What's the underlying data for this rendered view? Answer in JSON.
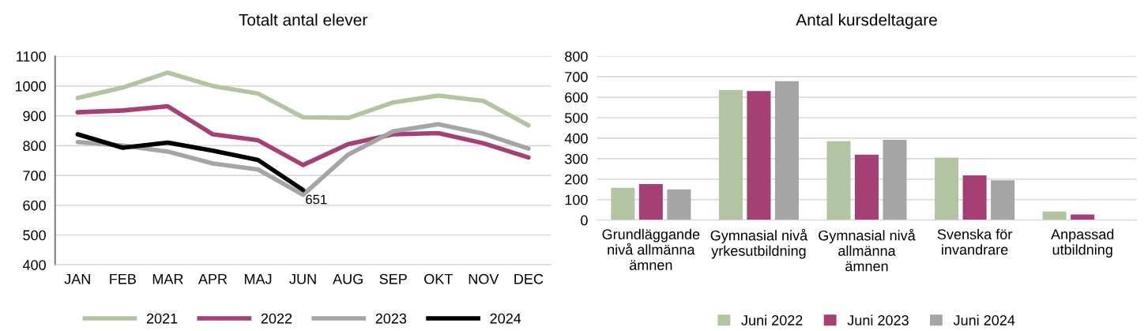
{
  "chart_data": [
    {
      "type": "line",
      "title": "Totalt antal elever",
      "categories": [
        "JAN",
        "FEB",
        "MAR",
        "APR",
        "MAJ",
        "JUN",
        "AUG",
        "SEP",
        "OKT",
        "NOV",
        "DEC"
      ],
      "ylim": [
        400,
        1100
      ],
      "yticks": [
        400,
        500,
        600,
        700,
        800,
        900,
        1000,
        1100
      ],
      "grid": "y",
      "legend": "bottom",
      "marker": "none",
      "line_style": "solid",
      "series": [
        {
          "name": "2021",
          "color": "#b2c4a1",
          "values": [
            960,
            995,
            1045,
            1000,
            975,
            895,
            893,
            945,
            968,
            950,
            868
          ]
        },
        {
          "name": "2022",
          "color": "#a44074",
          "values": [
            912,
            918,
            932,
            838,
            818,
            735,
            805,
            838,
            842,
            808,
            760
          ]
        },
        {
          "name": "2023",
          "color": "#a5a5a5",
          "values": [
            812,
            800,
            780,
            740,
            720,
            635,
            770,
            848,
            872,
            840,
            790
          ]
        },
        {
          "name": "2024",
          "color": "#000000",
          "values": [
            838,
            793,
            810,
            783,
            752,
            651,
            null,
            null,
            null,
            null,
            null
          ],
          "value_labels": [
            null,
            null,
            null,
            null,
            null,
            "651",
            null,
            null,
            null,
            null,
            null
          ]
        }
      ]
    },
    {
      "type": "bar",
      "title": "Antal kursdeltagare",
      "categories": [
        "Grundläggande\nnivå allmänna\nämnen",
        "Gymnasial nivå\nyrkesutbildning",
        "Gymnasial nivå\nallmänna\nämnen",
        "Svenska för\ninvandrare",
        "Anpassad\nutbildning"
      ],
      "ylim": [
        0,
        800
      ],
      "yticks": [
        0,
        100,
        200,
        300,
        400,
        500,
        600,
        700,
        800
      ],
      "grid": "y",
      "legend": "bottom",
      "series": [
        {
          "name": "Juni 2022",
          "color": "#b2c4a1",
          "values": [
            158,
            635,
            385,
            305,
            42
          ]
        },
        {
          "name": "Juni 2023",
          "color": "#a44074",
          "values": [
            176,
            630,
            320,
            218,
            28
          ]
        },
        {
          "name": "Juni 2024",
          "color": "#a5a5a5",
          "values": [
            150,
            678,
            392,
            194,
            null
          ]
        }
      ]
    }
  ]
}
